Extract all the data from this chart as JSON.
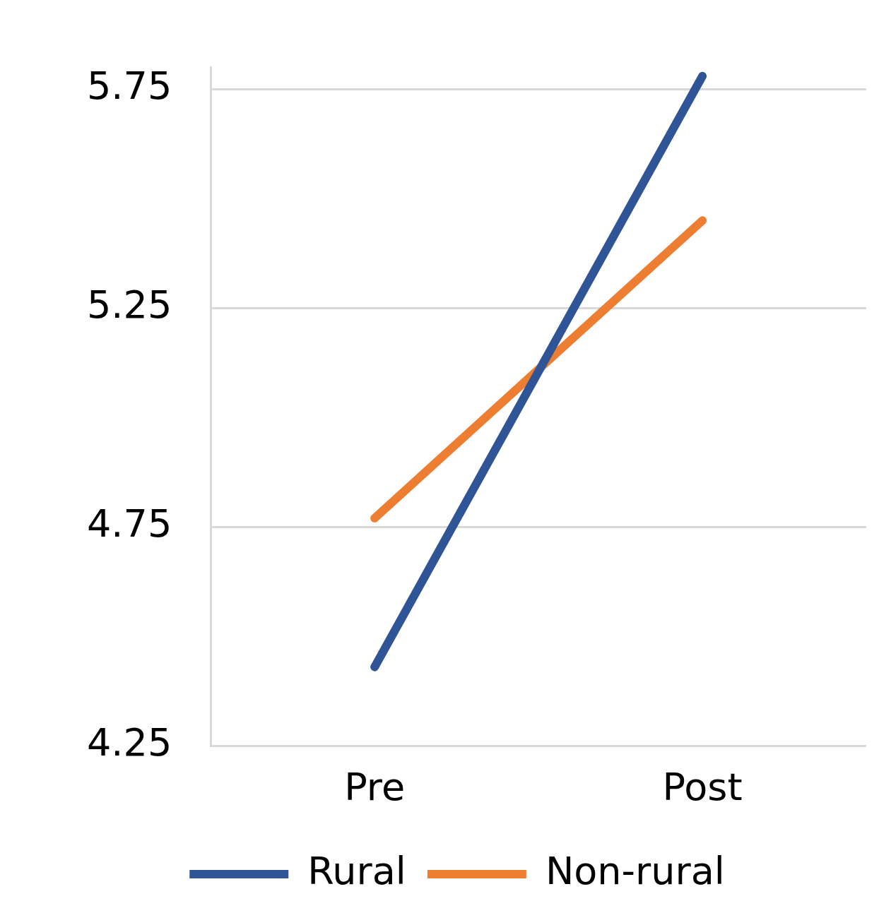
{
  "chart_data": {
    "type": "line",
    "categories": [
      "Pre",
      "Post"
    ],
    "series": [
      {
        "name": "Rural",
        "color": "#2f5597",
        "values": [
          4.43,
          5.78
        ]
      },
      {
        "name": "Non-rural",
        "color": "#ed7d31",
        "values": [
          4.77,
          5.45
        ]
      }
    ],
    "ylim": [
      4.25,
      5.8
    ],
    "yticks": [
      4.25,
      5.25,
      4.75,
      5.75
    ],
    "grid": "y",
    "legend": "bottom",
    "marker": "none",
    "line_style": "solid"
  }
}
